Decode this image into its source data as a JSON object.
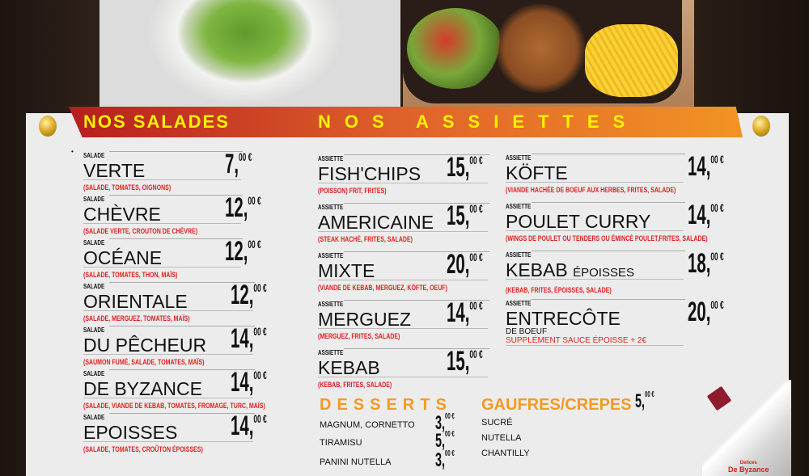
{
  "header": {
    "salads_title": "NOS SALADES",
    "plates_title": "NOS ASSIETTES"
  },
  "colors": {
    "banner_start": "#b51e1e",
    "banner_end": "#f29424",
    "heading_text": "#fff200",
    "description": "#e32020",
    "section_orange": "#f49a22",
    "board": "#ececec"
  },
  "currency": "€",
  "salads": {
    "label": "SALADE",
    "items": [
      {
        "name": "VERTE",
        "desc": "(SALADE, TOMATES, OIGNONS)",
        "price": "7",
        "cents": "00 €"
      },
      {
        "name": "CHÈVRE",
        "desc": "(SALADE VERTE, CROUTON DE CHÈVRE)",
        "price": "12",
        "cents": "00 €"
      },
      {
        "name": "OCÉANE",
        "desc": "(SALADE, TOMATES, THON, MAÏS)",
        "price": "12",
        "cents": "00 €"
      },
      {
        "name": "ORIENTALE",
        "desc": "(SALADE, MERGUEZ, TOMATES, MAÏS)",
        "price": "12",
        "cents": "00 €"
      },
      {
        "name": "DU PÊCHEUR",
        "desc": "(SAUMON FUMÉ, SALADE, TOMATES, MAÏS)",
        "price": "14",
        "cents": "00 €"
      },
      {
        "name": "DE BYZANCE",
        "desc": "(SALADE, VIANDE DE KEBAB, TOMATES, FROMAGE, TURC, MAÏS)",
        "price": "14",
        "cents": "00 €"
      },
      {
        "name": "EPOISSES",
        "desc": "(SALADE, TOMATES, CROÛTON ÉPOISSES)",
        "price": "14",
        "cents": "00 €"
      }
    ]
  },
  "plates": {
    "label": "ASSIETTE",
    "left": [
      {
        "name": "FISH'CHIPS",
        "desc": "(POISSON) FRIT, FRITES)",
        "price": "15",
        "cents": "00 €"
      },
      {
        "name": "AMERICAINE",
        "desc": "(STEAK HACHÉ, FRITES, SALADE)",
        "price": "15",
        "cents": "00 €"
      },
      {
        "name": "MIXTE",
        "desc": "(VIANDE DE KEBAB, MERGUEZ, KÖFTE, OEUF)",
        "price": "20",
        "cents": "00 €"
      },
      {
        "name": "MERGUEZ",
        "desc": "(MERGUEZ, FRITES, SALADE)",
        "price": "14",
        "cents": "00 €"
      },
      {
        "name": "KEBAB",
        "desc": "(KEBAB, FRITES, SALADE)",
        "price": "15",
        "cents": "00 €"
      }
    ],
    "right": [
      {
        "name": "KÖFTE",
        "desc": "(VIANDE HACHÉE DE BOEUF AUX HERBES, FRITES, SALADE)",
        "price": "14",
        "cents": "00 €"
      },
      {
        "name": "POULET CURRY",
        "desc": "(WINGS DE POULET OU TENDERS OU ÉMINCÉ POULET,FRITES, SALADE)",
        "price": "14",
        "cents": "00 €"
      },
      {
        "name": "KEBAB",
        "name_small": "ÉPOISSES",
        "desc": "(KEBAB, FRITES, ÉPOISSES, SALADE)",
        "price": "18",
        "cents": "00 €"
      },
      {
        "name": "ENTRECÔTE",
        "sub": "DE BOEUF",
        "desc2": "SUPPLÉMENT SAUCE ÉPOISSE + 2€",
        "price": "20",
        "cents": "00 €"
      }
    ]
  },
  "desserts": {
    "title": "DESSERTS",
    "items": [
      {
        "name": "MAGNUM, CORNETTO",
        "price": "3",
        "cents": "00 €"
      },
      {
        "name": "TIRAMISU",
        "price": "5",
        "cents": "00 €"
      },
      {
        "name": "PANINI NUTELLA",
        "price": "3",
        "cents": "00 €"
      }
    ]
  },
  "waffles": {
    "title": "GAUFRES/CREPES",
    "price": "5",
    "cents": "00 €",
    "items": [
      "SUCRÉ",
      "NUTELLA",
      "CHANTILLY"
    ]
  },
  "logo": {
    "line1": "Delices",
    "line2": "De Byzance"
  }
}
